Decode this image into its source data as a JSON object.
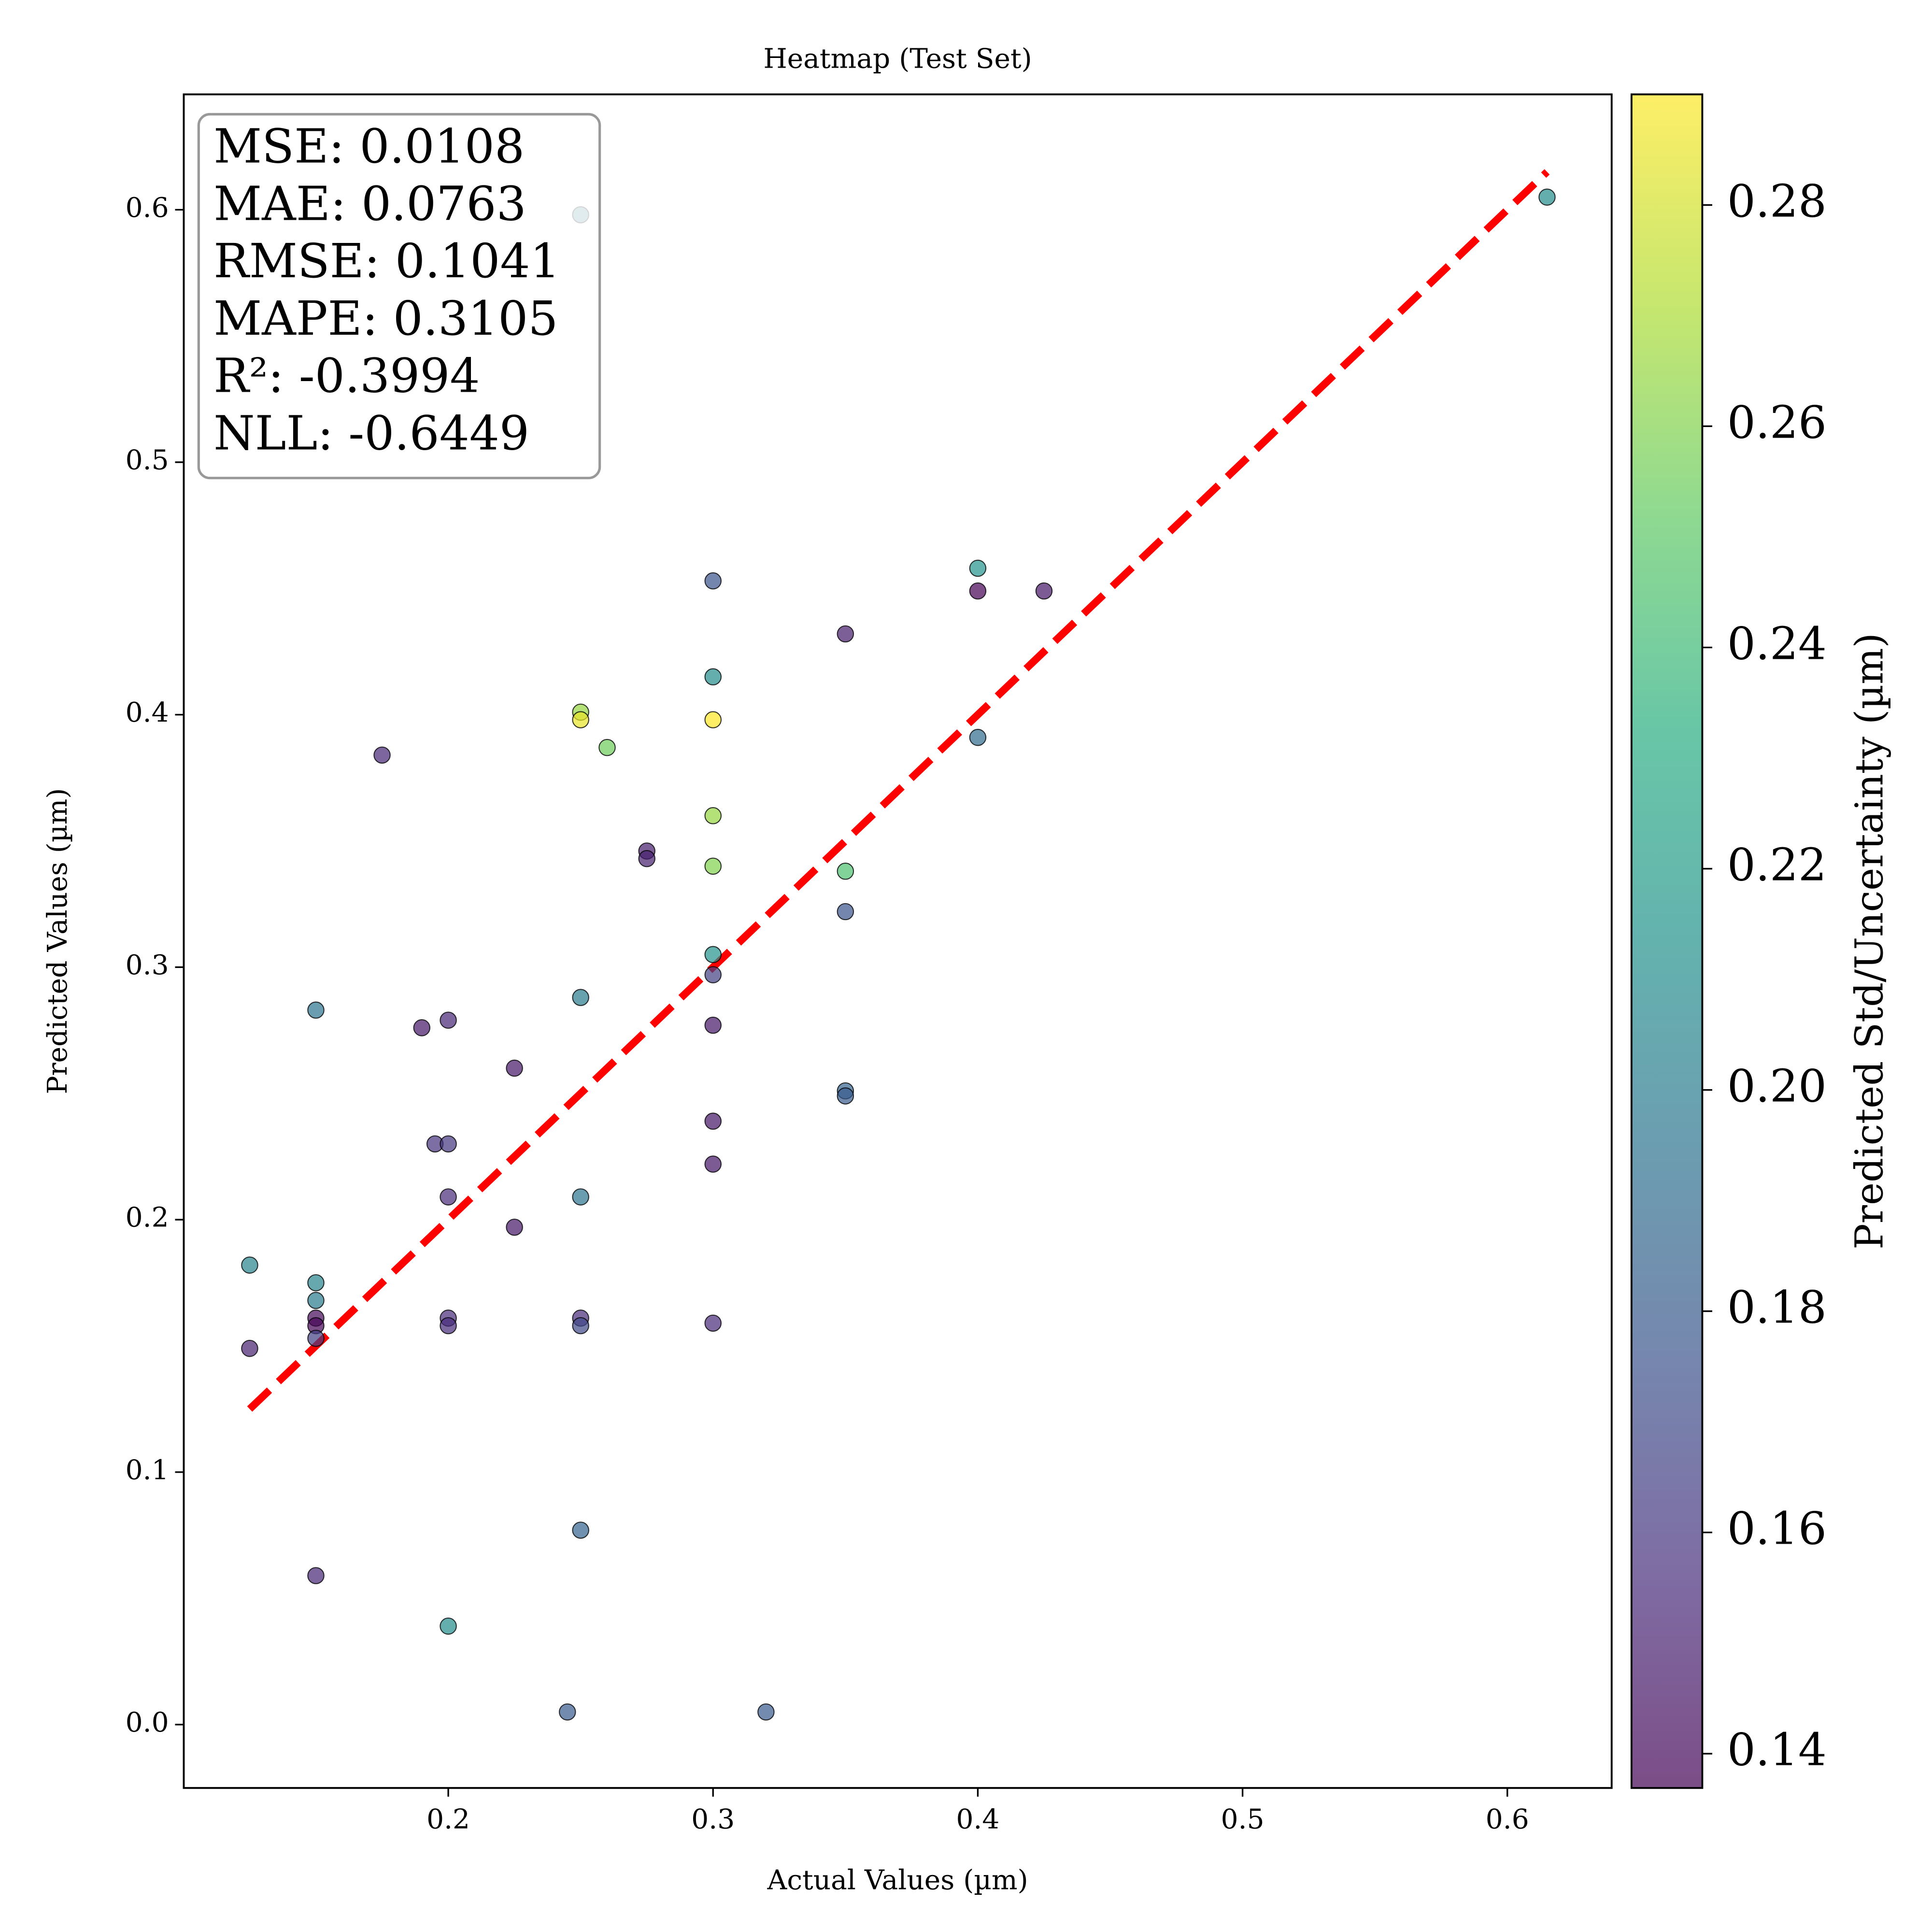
{
  "chart_data": {
    "type": "scatter",
    "title": "Heatmap (Test Set)",
    "x_label": "Actual Values (µm)",
    "y_label": "Predicted Values (µm)",
    "xlim": [
      0.1001,
      0.6394
    ],
    "ylim": [
      -0.0251,
      0.6457
    ],
    "xticks": [
      0.2,
      0.3,
      0.4,
      0.5,
      0.6
    ],
    "yticks": [
      {
        "value": 0,
        "label": "0.0"
      },
      0.1,
      0.2,
      0.3,
      0.4,
      0.5,
      0.6
    ],
    "colormap": "viridis",
    "colorbar": {
      "label": "Predicted Std/Uncertainty (µm)",
      "lim": [
        0.1369,
        0.29
      ],
      "ticks": [
        0.14,
        0.16,
        0.18,
        {
          "value": 0.2,
          "label": "0.20"
        },
        0.22,
        0.24,
        0.26,
        0.28
      ]
    },
    "reference_line": {
      "x": [
        0.125,
        0.615
      ],
      "y": [
        0.125,
        0.615
      ],
      "color": "#ff0000"
    },
    "annotations": [
      "MSE: 0.0108",
      "MAE: 0.0763",
      "RMSE: 0.1041",
      "MAPE: 0.3105",
      "R²: -0.3994",
      "NLL: -0.6449"
    ],
    "x": [
      0.25,
      0.615,
      0.3,
      0.4,
      0.4,
      0.425,
      0.35,
      0.3,
      0.25,
      0.25,
      0.3,
      0.26,
      0.175,
      0.4,
      0.3,
      0.3,
      0.275,
      0.275,
      0.35,
      0.35,
      0.3,
      0.3,
      0.25,
      0.15,
      0.19,
      0.2,
      0.3,
      0.225,
      0.35,
      0.35,
      0.3,
      0.195,
      0.2,
      0.3,
      0.2,
      0.25,
      0.225,
      0.125,
      0.15,
      0.15,
      0.15,
      0.15,
      0.15,
      0.2,
      0.2,
      0.25,
      0.25,
      0.3,
      0.125,
      0.25,
      0.15,
      0.2,
      0.245,
      0.32
    ],
    "y": [
      0.598,
      0.605,
      0.453,
      0.458,
      0.449,
      0.449,
      0.432,
      0.415,
      0.401,
      0.398,
      0.398,
      0.387,
      0.384,
      0.391,
      0.36,
      0.34,
      0.346,
      0.343,
      0.338,
      0.322,
      0.305,
      0.297,
      0.288,
      0.283,
      0.276,
      0.279,
      0.277,
      0.26,
      0.251,
      0.249,
      0.239,
      0.23,
      0.23,
      0.222,
      0.209,
      0.209,
      0.197,
      0.182,
      0.175,
      0.168,
      0.161,
      0.158,
      0.153,
      0.161,
      0.158,
      0.161,
      0.158,
      0.159,
      0.149,
      0.077,
      0.059,
      0.039,
      0.005,
      0.005
    ],
    "colors": [
      0.2,
      0.21,
      0.175,
      0.215,
      0.137,
      0.145,
      0.148,
      0.21,
      0.265,
      0.285,
      0.29,
      0.255,
      0.152,
      0.19,
      0.265,
      0.26,
      0.148,
      0.15,
      0.245,
      0.175,
      0.215,
      0.165,
      0.2,
      0.195,
      0.145,
      0.152,
      0.145,
      0.145,
      0.185,
      0.18,
      0.145,
      0.158,
      0.16,
      0.145,
      0.155,
      0.195,
      0.145,
      0.205,
      0.205,
      0.2,
      0.14,
      0.138,
      0.165,
      0.155,
      0.155,
      0.155,
      0.17,
      0.155,
      0.15,
      0.185,
      0.152,
      0.21,
      0.18,
      0.18
    ]
  }
}
